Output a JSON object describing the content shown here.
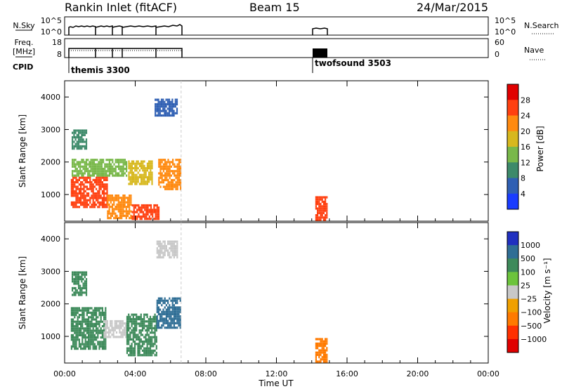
{
  "header": {
    "title": "Rankin Inlet (fitACF)",
    "beam": "Beam 15",
    "date": "24/Mar/2015"
  },
  "top_panels": {
    "nsky_label": "N.Sky",
    "nsky_ticks": [
      "10^5",
      "10^0"
    ],
    "nsearch_label": "N.Search",
    "freq_label_1": "Freq.",
    "freq_label_2": "[MHz]",
    "freq_ticks": [
      "18",
      "8"
    ],
    "nave_label": "Nave",
    "nave_ticks": [
      "60",
      "0"
    ],
    "cpid_label": "CPID",
    "cpid_entries": [
      {
        "name": "themis 3300",
        "start_hour": 0.35
      },
      {
        "name": "twofsound 3503",
        "start_hour": 14.3
      }
    ]
  },
  "time_axis": {
    "label": "Time UT",
    "ticks": [
      "00:00",
      "04:00",
      "08:00",
      "12:00",
      "16:00",
      "20:00",
      "00:00"
    ]
  },
  "chart_data": [
    {
      "type": "heatmap",
      "name": "power",
      "xlabel": "Time UT",
      "ylabel": "Slant Range [km]",
      "xlim": [
        0,
        24
      ],
      "ylim": [
        180,
        4500
      ],
      "yticks": [
        1000,
        2000,
        3000,
        4000
      ],
      "colorbar": {
        "label": "Power [dB]",
        "ticks": [
          "4",
          "8",
          "12",
          "16",
          "20",
          "24",
          "28"
        ],
        "colors": [
          "#1a3cff",
          "#2f5fb3",
          "#3d8a6a",
          "#79b84a",
          "#d7b81e",
          "#ff8a10",
          "#ff4010",
          "#e00000"
        ]
      },
      "blocks": [
        {
          "t0": 0.35,
          "t1": 2.4,
          "r0": 650,
          "r1": 1550,
          "v": 26
        },
        {
          "t0": 2.4,
          "t1": 3.8,
          "r0": 300,
          "r1": 1000,
          "v": 22
        },
        {
          "t0": 3.8,
          "t1": 5.3,
          "r0": 250,
          "r1": 700,
          "v": 24
        },
        {
          "t0": 5.3,
          "t1": 6.6,
          "r0": 1200,
          "r1": 2100,
          "v": 20
        },
        {
          "t0": 0.4,
          "t1": 3.5,
          "r0": 1550,
          "r1": 2100,
          "v": 13
        },
        {
          "t0": 3.6,
          "t1": 5.0,
          "r0": 1300,
          "r1": 2050,
          "v": 16
        },
        {
          "t0": 0.4,
          "t1": 1.2,
          "r0": 2400,
          "r1": 3000,
          "v": 8
        },
        {
          "t0": 5.1,
          "t1": 6.4,
          "r0": 3450,
          "r1": 3950,
          "v": 7
        },
        {
          "t0": 14.2,
          "t1": 14.9,
          "r0": 250,
          "r1": 950,
          "v": 24
        }
      ]
    },
    {
      "type": "heatmap",
      "name": "velocity",
      "xlabel": "Time UT",
      "ylabel": "Slant Range [km]",
      "xlim": [
        0,
        24
      ],
      "ylim": [
        180,
        4500
      ],
      "yticks": [
        1000,
        2000,
        3000,
        4000
      ],
      "colorbar": {
        "label": "Velocity [m s⁻¹]",
        "ticks": [
          "1000",
          "500",
          "100",
          "25",
          "−25",
          "−100",
          "−500",
          "−1000"
        ],
        "colors": [
          "#2030c0",
          "#2f6e95",
          "#3d8a5a",
          "#6cc43c",
          "#c8c8c8",
          "#f0a000",
          "#ff7a00",
          "#ff3000",
          "#e00000"
        ]
      },
      "blocks": [
        {
          "t0": 0.35,
          "t1": 2.3,
          "r0": 600,
          "r1": 1900,
          "v": 120
        },
        {
          "t0": 2.2,
          "t1": 3.6,
          "r0": 1000,
          "r1": 1500,
          "v": 5
        },
        {
          "t0": 3.5,
          "t1": 5.2,
          "r0": 400,
          "r1": 1700,
          "v": 300
        },
        {
          "t0": 5.2,
          "t1": 6.6,
          "r0": 1300,
          "r1": 2200,
          "v": 700
        },
        {
          "t0": 0.4,
          "t1": 1.2,
          "r0": 2300,
          "r1": 3000,
          "v": 150
        },
        {
          "t0": 5.2,
          "t1": 6.4,
          "r0": 3450,
          "r1": 3950,
          "v": 10
        },
        {
          "t0": 14.2,
          "t1": 14.9,
          "r0": 250,
          "r1": 950,
          "v": -150
        }
      ]
    }
  ]
}
